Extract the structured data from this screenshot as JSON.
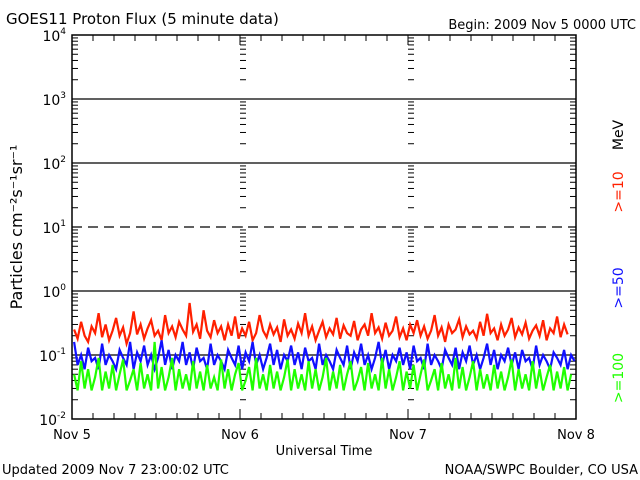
{
  "chart_data": {
    "type": "line",
    "title": "GOES11 Proton Flux (5 minute data)",
    "begin_label": "Begin: 2009 Nov 5 0000 UTC",
    "xlabel": "Universal Time",
    "ylabel": "Particles cm⁻²s⁻¹sr⁻¹",
    "yscale": "log",
    "ylim": [
      0.01,
      10000
    ],
    "yticks": [
      {
        "base": "10",
        "exp": "4"
      },
      {
        "base": "10",
        "exp": "3"
      },
      {
        "base": "10",
        "exp": "2"
      },
      {
        "base": "10",
        "exp": "1"
      },
      {
        "base": "10",
        "exp": "0"
      },
      {
        "base": "10",
        "exp": "-1"
      },
      {
        "base": "10",
        "exp": "-2"
      }
    ],
    "xlim_hours": [
      0,
      72
    ],
    "xticks": [
      {
        "label": "Nov 5",
        "hour": 0
      },
      {
        "label": "Nov 6",
        "hour": 24
      },
      {
        "label": "Nov 7",
        "hour": 48
      },
      {
        "label": "Nov 8",
        "hour": 72
      }
    ],
    "grid": "decade lines (10^1 dashed)",
    "legend_unit": "MeV",
    "series": [
      {
        "name": ">=10",
        "color": "#ff2000",
        "x_step_hours": 0.5,
        "values": [
          0.25,
          0.18,
          0.33,
          0.2,
          0.16,
          0.28,
          0.22,
          0.45,
          0.19,
          0.3,
          0.17,
          0.24,
          0.38,
          0.2,
          0.27,
          0.15,
          0.22,
          0.48,
          0.21,
          0.3,
          0.18,
          0.26,
          0.35,
          0.2,
          0.24,
          0.17,
          0.42,
          0.22,
          0.28,
          0.19,
          0.33,
          0.25,
          0.2,
          0.65,
          0.23,
          0.3,
          0.18,
          0.5,
          0.24,
          0.19,
          0.35,
          0.22,
          0.28,
          0.17,
          0.3,
          0.2,
          0.4,
          0.18,
          0.26,
          0.2,
          0.33,
          0.17,
          0.22,
          0.42,
          0.24,
          0.19,
          0.3,
          0.21,
          0.27,
          0.16,
          0.36,
          0.2,
          0.25,
          0.18,
          0.31,
          0.22,
          0.45,
          0.2,
          0.28,
          0.17,
          0.24,
          0.33,
          0.19,
          0.26,
          0.21,
          0.38,
          0.18,
          0.29,
          0.22,
          0.2,
          0.34,
          0.17,
          0.25,
          0.3,
          0.2,
          0.45,
          0.22,
          0.27,
          0.18,
          0.32,
          0.2,
          0.24,
          0.4,
          0.19,
          0.26,
          0.17,
          0.3,
          0.22,
          0.35,
          0.2,
          0.28,
          0.18,
          0.24,
          0.42,
          0.2,
          0.27,
          0.16,
          0.3,
          0.22,
          0.25,
          0.36,
          0.19,
          0.28,
          0.21,
          0.24,
          0.18,
          0.33,
          0.2,
          0.44,
          0.22,
          0.26,
          0.17,
          0.3,
          0.2,
          0.25,
          0.38,
          0.19,
          0.27,
          0.21,
          0.32,
          0.18,
          0.24,
          0.29,
          0.2,
          0.35,
          0.17,
          0.26,
          0.22,
          0.4,
          0.19,
          0.3,
          0.21
        ]
      },
      {
        "name": ">=50",
        "color": "#1010ff",
        "x_step_hours": 0.5,
        "values": [
          0.16,
          0.07,
          0.1,
          0.06,
          0.13,
          0.08,
          0.09,
          0.06,
          0.15,
          0.07,
          0.1,
          0.08,
          0.06,
          0.12,
          0.09,
          0.07,
          0.16,
          0.06,
          0.11,
          0.08,
          0.14,
          0.07,
          0.1,
          0.06,
          0.09,
          0.17,
          0.07,
          0.12,
          0.06,
          0.1,
          0.08,
          0.16,
          0.07,
          0.11,
          0.06,
          0.13,
          0.08,
          0.09,
          0.06,
          0.15,
          0.07,
          0.1,
          0.08,
          0.06,
          0.12,
          0.09,
          0.07,
          0.14,
          0.06,
          0.11,
          0.08,
          0.16,
          0.07,
          0.1,
          0.06,
          0.09,
          0.15,
          0.07,
          0.12,
          0.06,
          0.1,
          0.08,
          0.14,
          0.07,
          0.11,
          0.06,
          0.13,
          0.08,
          0.09,
          0.06,
          0.15,
          0.07,
          0.1,
          0.08,
          0.06,
          0.12,
          0.09,
          0.07,
          0.14,
          0.06,
          0.11,
          0.08,
          0.15,
          0.07,
          0.1,
          0.06,
          0.09,
          0.16,
          0.07,
          0.12,
          0.06,
          0.1,
          0.08,
          0.13,
          0.07,
          0.11,
          0.06,
          0.14,
          0.08,
          0.09,
          0.06,
          0.15,
          0.07,
          0.1,
          0.08,
          0.06,
          0.12,
          0.09,
          0.07,
          0.13,
          0.06,
          0.11,
          0.08,
          0.14,
          0.07,
          0.1,
          0.06,
          0.09,
          0.15,
          0.07,
          0.12,
          0.06,
          0.1,
          0.08,
          0.13,
          0.07,
          0.11,
          0.06,
          0.12,
          0.08,
          0.09,
          0.06,
          0.14,
          0.07,
          0.1,
          0.08,
          0.06,
          0.11,
          0.09,
          0.07,
          0.12,
          0.06,
          0.1,
          0.08
        ]
      },
      {
        "name": ">=100",
        "color": "#20ff00",
        "x_step_hours": 0.5,
        "values": [
          0.05,
          0.028,
          0.08,
          0.03,
          0.06,
          0.028,
          0.045,
          0.09,
          0.028,
          0.055,
          0.03,
          0.07,
          0.028,
          0.05,
          0.085,
          0.028,
          0.04,
          0.06,
          0.028,
          0.075,
          0.03,
          0.05,
          0.028,
          0.16,
          0.03,
          0.065,
          0.028,
          0.045,
          0.09,
          0.028,
          0.06,
          0.03,
          0.05,
          0.028,
          0.08,
          0.03,
          0.055,
          0.028,
          0.07,
          0.03,
          0.045,
          0.028,
          0.085,
          0.03,
          0.06,
          0.028,
          0.05,
          0.075,
          0.028,
          0.04,
          0.065,
          0.028,
          0.09,
          0.03,
          0.05,
          0.028,
          0.07,
          0.03,
          0.055,
          0.028,
          0.045,
          0.085,
          0.028,
          0.06,
          0.03,
          0.05,
          0.028,
          0.08,
          0.03,
          0.06,
          0.028,
          0.045,
          0.09,
          0.028,
          0.055,
          0.03,
          0.07,
          0.028,
          0.05,
          0.08,
          0.028,
          0.04,
          0.065,
          0.028,
          0.075,
          0.03,
          0.05,
          0.028,
          0.09,
          0.03,
          0.06,
          0.028,
          0.045,
          0.08,
          0.028,
          0.055,
          0.03,
          0.07,
          0.028,
          0.05,
          0.085,
          0.028,
          0.04,
          0.06,
          0.028,
          0.075,
          0.03,
          0.05,
          0.028,
          0.09,
          0.03,
          0.065,
          0.028,
          0.045,
          0.08,
          0.028,
          0.06,
          0.03,
          0.05,
          0.028,
          0.07,
          0.03,
          0.055,
          0.028,
          0.045,
          0.085,
          0.028,
          0.06,
          0.03,
          0.05,
          0.028,
          0.08,
          0.03,
          0.06,
          0.028,
          0.045,
          0.07,
          0.028,
          0.055,
          0.03,
          0.065,
          0.028,
          0.05
        ]
      }
    ]
  },
  "footer": {
    "updated": "Updated 2009 Nov  7 23:00:02 UTC",
    "source": "NOAA/SWPC Boulder, CO USA"
  }
}
